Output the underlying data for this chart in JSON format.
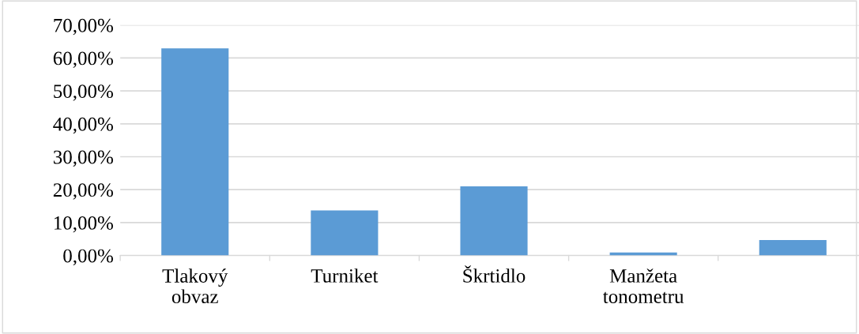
{
  "chart_data": {
    "type": "bar",
    "categories": [
      "Tlakový\nobvaz",
      "Turniket",
      "Škrtidlo",
      "Manžeta\ntonometru",
      null
    ],
    "values": [
      62.9,
      13.7,
      21.0,
      0.9,
      4.7
    ],
    "color": "#5b9bd5",
    "ylim": [
      0,
      70
    ],
    "yticks": [
      {
        "value": 0,
        "label": "0,00%"
      },
      {
        "value": 10,
        "label": "10,00%"
      },
      {
        "value": 20,
        "label": "20,00%"
      },
      {
        "value": 30,
        "label": "30,00%"
      },
      {
        "value": 40,
        "label": "40,00%"
      },
      {
        "value": 50,
        "label": "50,00%"
      },
      {
        "value": 60,
        "label": "60,00%"
      },
      {
        "value": 70,
        "label": "70,00%"
      }
    ],
    "grid": "y"
  }
}
